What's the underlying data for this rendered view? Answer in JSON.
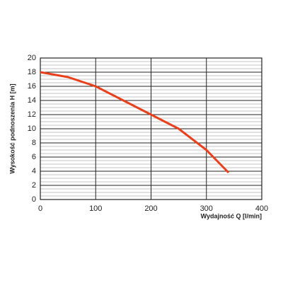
{
  "chart_data": {
    "type": "line",
    "x_label": "Wydajność Q [l/min]",
    "y_label": "Wysokość podnoszenia H [m]",
    "x": [
      0,
      50,
      100,
      150,
      200,
      250,
      300,
      340
    ],
    "series": [
      {
        "color": "#e8401c",
        "values": [
          18,
          17.3,
          16,
          14,
          12,
          10,
          7,
          3.8
        ]
      }
    ],
    "xlim": [
      0,
      400
    ],
    "xticks": [
      0,
      100,
      200,
      300,
      400
    ],
    "ylim": [
      0,
      20
    ],
    "yticks": [
      0,
      2,
      4,
      6,
      8,
      10,
      12,
      14,
      16,
      18,
      20
    ],
    "grid": true,
    "minor_grid_step": 0.5
  }
}
